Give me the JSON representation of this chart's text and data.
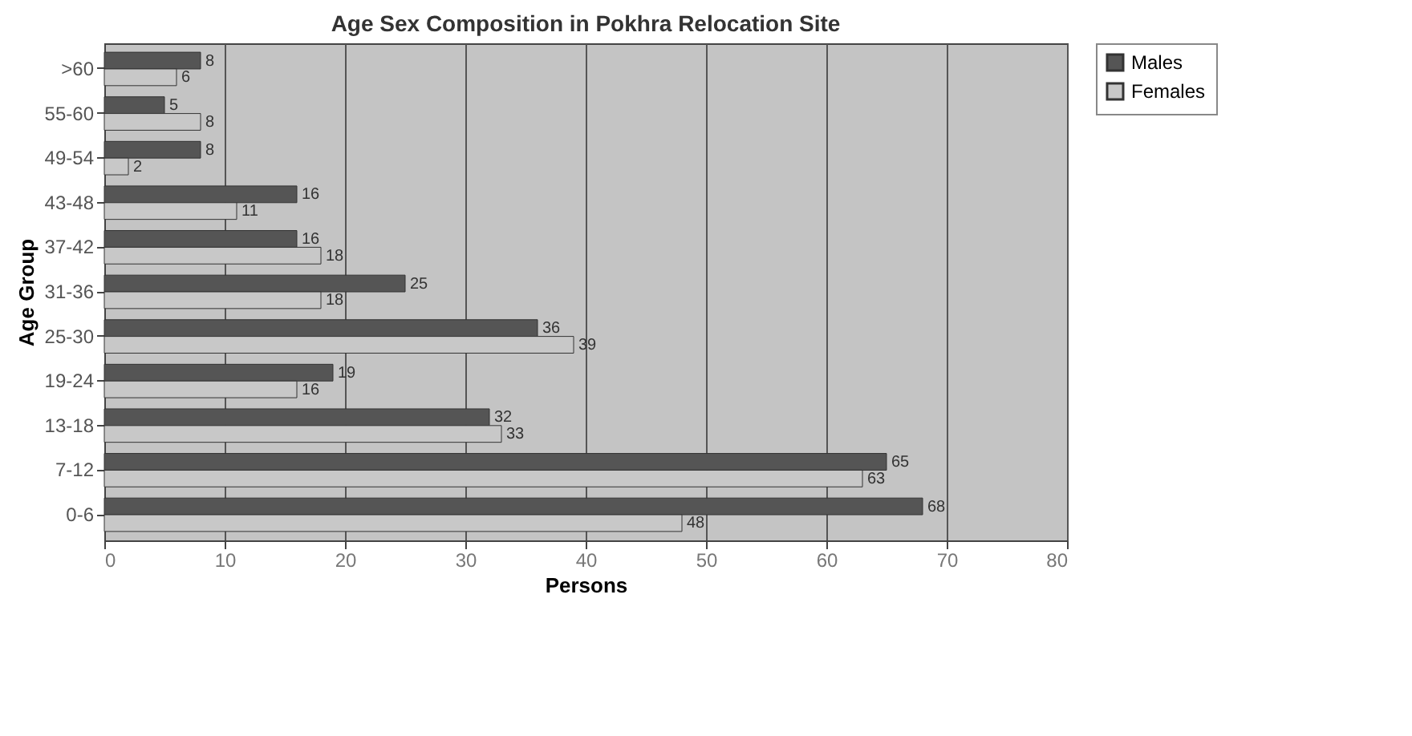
{
  "chart_data": {
    "type": "bar",
    "orientation": "horizontal",
    "title": "Age Sex Composition in Pokhra Relocation Site",
    "xlabel": "Persons",
    "ylabel": "Age Group",
    "categories": [
      ">60",
      "55-60",
      "49-54",
      "43-48",
      "37-42",
      "31-36",
      "25-30",
      "19-24",
      "13-18",
      "7-12",
      "0-6"
    ],
    "series": [
      {
        "name": "Males",
        "color": "#555555",
        "values": [
          8,
          5,
          8,
          16,
          16,
          25,
          36,
          19,
          32,
          65,
          68
        ]
      },
      {
        "name": "Females",
        "color": "#c8c8c8",
        "values": [
          6,
          8,
          2,
          11,
          18,
          18,
          39,
          16,
          33,
          63,
          48
        ]
      }
    ],
    "xlim": [
      0,
      80
    ],
    "xticks": [
      0,
      10,
      20,
      30,
      40,
      50,
      60,
      70,
      80
    ],
    "grid": "x",
    "legend": "right",
    "data_labels": true
  }
}
